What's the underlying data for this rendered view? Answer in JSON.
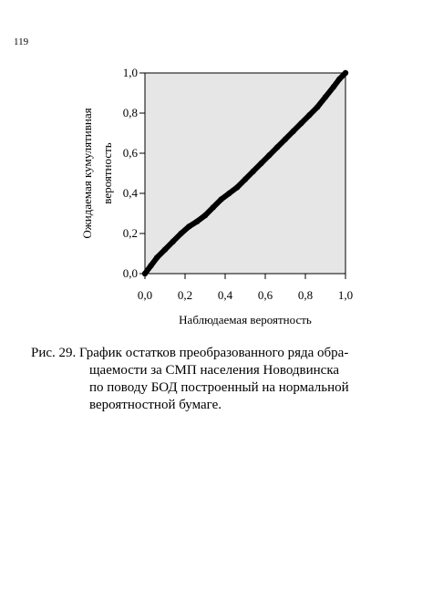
{
  "page": {
    "number": "119"
  },
  "chart_data": {
    "type": "line",
    "xlabel": "Наблюдаемая вероятность",
    "ylabel_lines": [
      "Ожидаемая кумулятивная",
      "вероятность"
    ],
    "x_ticks": [
      "0,0",
      "0,2",
      "0,4",
      "0,6",
      "0,8",
      "1,0"
    ],
    "y_ticks": [
      "0,0",
      "0,2",
      "0,4",
      "0,6",
      "0,8",
      "1,0"
    ],
    "xlim": [
      0,
      1
    ],
    "ylim": [
      0,
      1
    ],
    "grid": false,
    "series": [
      {
        "x": [
          0.0,
          0.03,
          0.06,
          0.1,
          0.14,
          0.18,
          0.22,
          0.26,
          0.3,
          0.34,
          0.38,
          0.42,
          0.46,
          0.5,
          0.54,
          0.58,
          0.62,
          0.66,
          0.7,
          0.74,
          0.78,
          0.82,
          0.86,
          0.9,
          0.94,
          0.97,
          1.0
        ],
        "y": [
          0.0,
          0.04,
          0.08,
          0.12,
          0.16,
          0.2,
          0.235,
          0.26,
          0.29,
          0.33,
          0.37,
          0.4,
          0.43,
          0.47,
          0.51,
          0.55,
          0.59,
          0.63,
          0.67,
          0.71,
          0.75,
          0.79,
          0.83,
          0.88,
          0.93,
          0.97,
          1.0
        ]
      }
    ]
  },
  "caption": {
    "lines": [
      "Рис. 29. График остатков преобразованного ряда обра-",
      "щаемости  за  СМП  населения Новодвинска",
      "по поводу БОД построенный на нормальной",
      "вероятностной бумаге."
    ]
  }
}
